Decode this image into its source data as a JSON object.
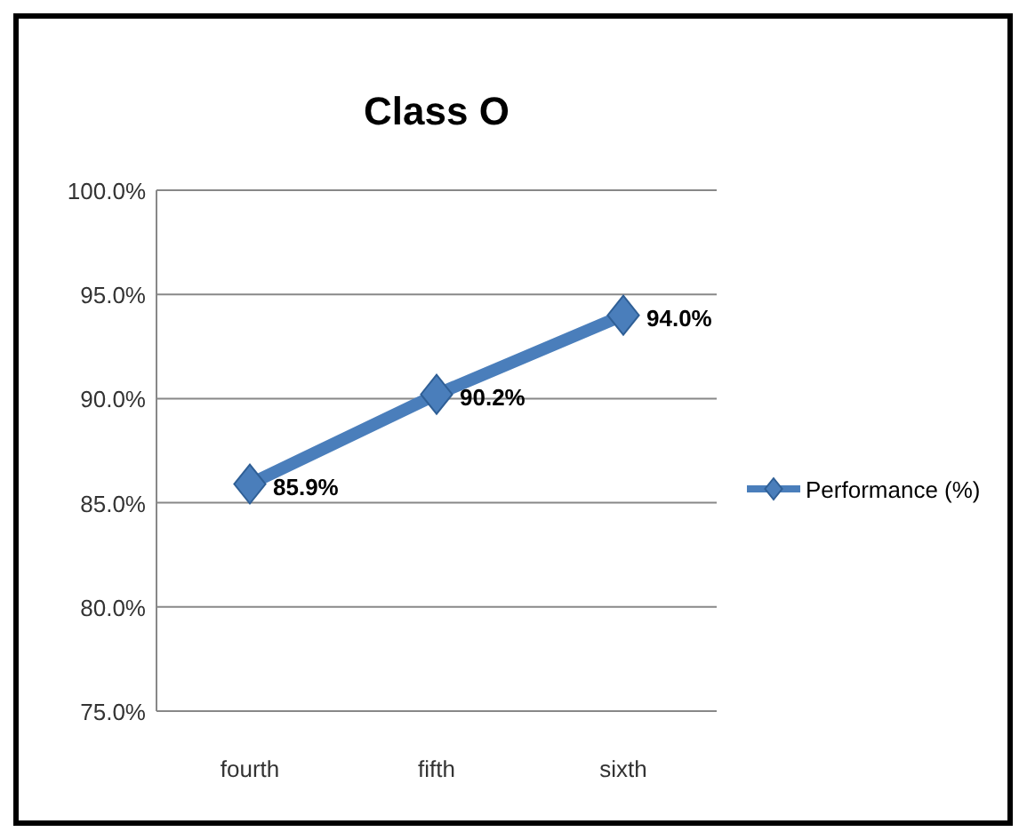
{
  "chart_data": {
    "type": "line",
    "title": "Class O",
    "categories": [
      "fourth",
      "fifth",
      "sixth"
    ],
    "series": [
      {
        "name": "Performance (%)",
        "color": "#4a7ebb",
        "values": [
          85.9,
          90.2,
          94.0
        ],
        "value_labels": [
          "85.9%",
          "90.2%",
          "94.0%"
        ]
      }
    ],
    "ylim": [
      75,
      100
    ],
    "yticks": [
      {
        "value": 75,
        "label": "75.0%"
      },
      {
        "value": 80,
        "label": "80.0%"
      },
      {
        "value": 85,
        "label": "85.0%"
      },
      {
        "value": 90,
        "label": "90.0%"
      },
      {
        "value": 95,
        "label": "95.0%"
      },
      {
        "value": 100,
        "label": "100.0%"
      }
    ],
    "grid": "y",
    "legend": "right",
    "marker": "diamond",
    "line_style": "solid"
  }
}
